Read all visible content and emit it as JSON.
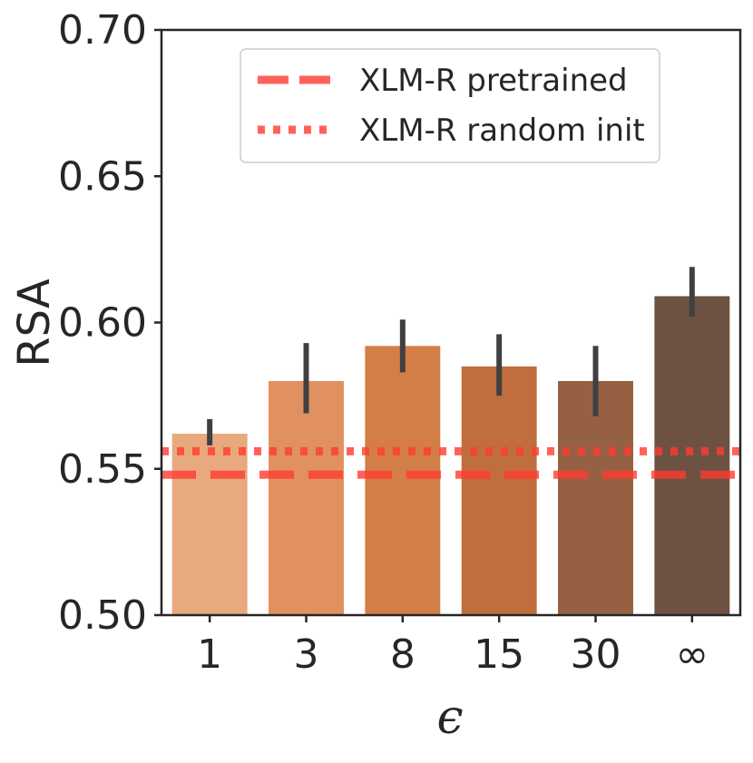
{
  "chart_data": {
    "type": "bar",
    "title": "",
    "xlabel": "ϵ",
    "ylabel": "RSA",
    "categories": [
      "1",
      "3",
      "8",
      "15",
      "30",
      "∞"
    ],
    "values": [
      0.562,
      0.58,
      0.592,
      0.585,
      0.58,
      0.609
    ],
    "error_low": [
      0.558,
      0.569,
      0.583,
      0.575,
      0.568,
      0.602
    ],
    "error_high": [
      0.567,
      0.593,
      0.601,
      0.596,
      0.592,
      0.619
    ],
    "bar_colors": [
      "#e8a97e",
      "#e19060",
      "#d47e47",
      "#c06e3e",
      "#966042",
      "#6d5241"
    ],
    "error_color": "#404040",
    "ylim": [
      0.5,
      0.7
    ],
    "yticks": [
      0.5,
      0.55,
      0.6,
      0.65,
      0.7
    ],
    "ytick_labels": [
      "0.50",
      "0.55",
      "0.60",
      "0.65",
      "0.70"
    ],
    "reference_lines": [
      {
        "name": "XLM-R pretrained",
        "value": 0.548,
        "style": "dashed",
        "color": "#ff3b30"
      },
      {
        "name": "XLM-R random init",
        "value": 0.556,
        "style": "dotted",
        "color": "#ff3b30"
      }
    ],
    "legend": {
      "position": "top-right",
      "entries": [
        "XLM-R pretrained",
        "XLM-R random init"
      ]
    },
    "grid": false
  }
}
